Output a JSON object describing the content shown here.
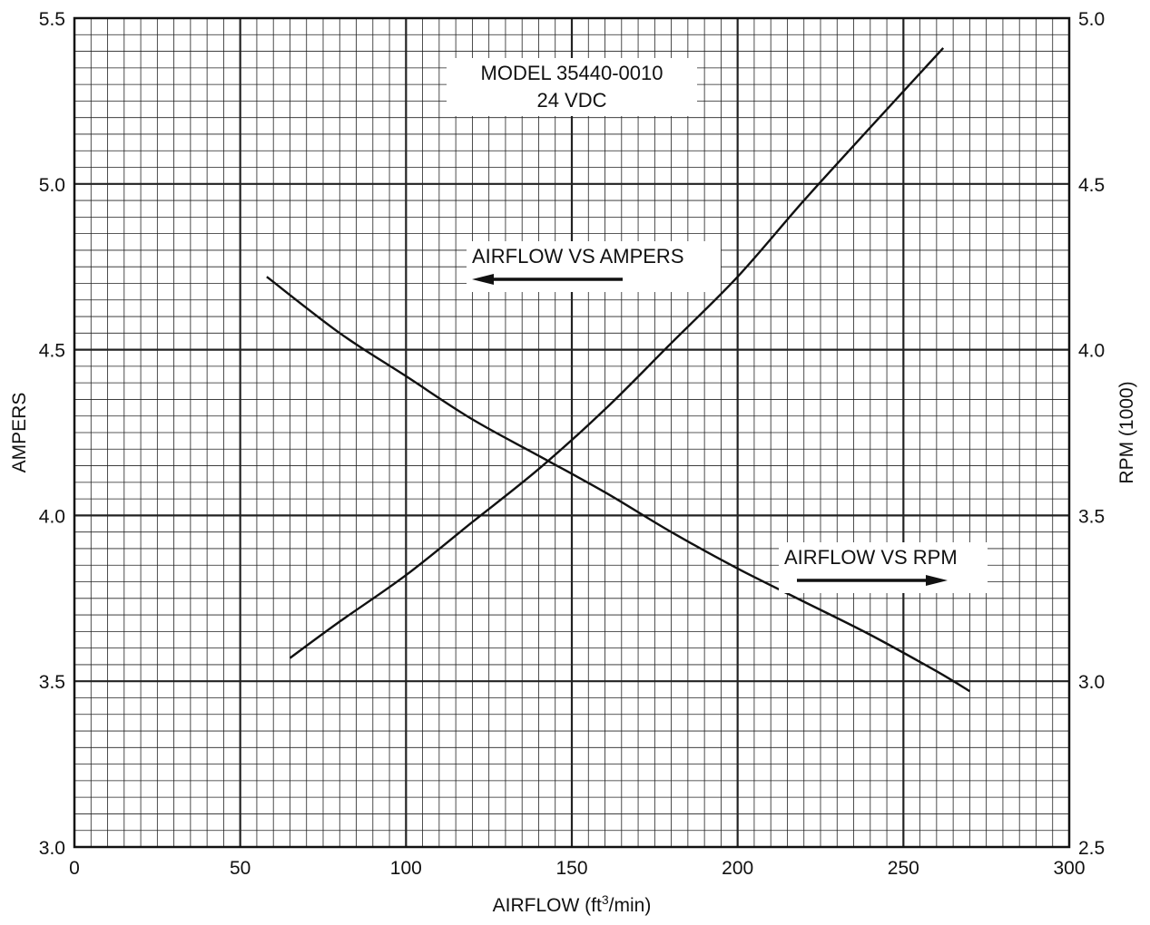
{
  "chart_data": {
    "type": "line",
    "title": "MODEL 35440-0010",
    "subtitle": "24 VDC",
    "xlabel": "AIRFLOW (ft³/min)",
    "xlabel_main": "AIRFLOW (ft",
    "xlabel_sup": "3",
    "xlabel_tail": "/min)",
    "ylabel_left": "AMPERS",
    "ylabel_right": "RPM (1000)",
    "xlim": [
      0,
      300
    ],
    "ylim_left": [
      3.0,
      5.5
    ],
    "ylim_right": [
      2.5,
      5.0
    ],
    "x_ticks": [
      "0",
      "50",
      "100",
      "150",
      "200",
      "250",
      "300"
    ],
    "y_left_ticks": [
      "3.0",
      "3.5",
      "4.0",
      "4.5",
      "5.0",
      "5.5"
    ],
    "y_right_ticks": [
      "2.5",
      "3.0",
      "3.5",
      "4.0",
      "4.5",
      "5.0"
    ],
    "grid": true,
    "annotations": [
      {
        "text": "AIRFLOW VS AMPERS",
        "arrow": "left"
      },
      {
        "text": "AIRFLOW VS RPM",
        "arrow": "right"
      }
    ],
    "series": [
      {
        "name": "AIRFLOW VS AMPERS",
        "axis": "left",
        "x": [
          58,
          80,
          100,
          120,
          140,
          160,
          180,
          200,
          220,
          240,
          260,
          270
        ],
        "y": [
          4.72,
          4.55,
          4.42,
          4.29,
          4.18,
          4.07,
          3.95,
          3.84,
          3.74,
          3.64,
          3.53,
          3.47
        ]
      },
      {
        "name": "AIRFLOW VS RPM",
        "axis": "right",
        "x": [
          65,
          80,
          100,
          120,
          140,
          160,
          180,
          200,
          220,
          240,
          262
        ],
        "y": [
          3.07,
          3.18,
          3.32,
          3.48,
          3.64,
          3.82,
          4.02,
          4.22,
          4.45,
          4.67,
          4.91
        ]
      }
    ]
  }
}
